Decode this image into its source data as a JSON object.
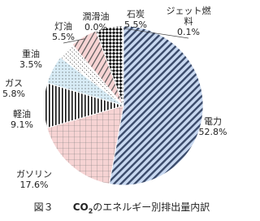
{
  "chart_data": {
    "type": "pie",
    "title_parts": [
      "図３",
      "CO",
      "2",
      "のエネルギー別排出量内訳"
    ],
    "categories": [
      "電力",
      "ガソリン",
      "軽油",
      "ガス",
      "重油",
      "灯油",
      "潤滑油",
      "石炭",
      "ジェット燃料"
    ],
    "values": [
      52.8,
      17.6,
      9.1,
      5.8,
      3.5,
      5.5,
      0.0,
      5.5,
      0.1
    ],
    "value_labels": [
      "52.8%",
      "17.6%",
      "9.1%",
      "5.8%",
      "3.5%",
      "5.5%",
      "0.0%",
      "5.5%",
      "0.1%"
    ],
    "colors": [
      "#c8d8f0",
      "#f6d3d3",
      "#ffffff",
      "#d8ecf6",
      "#ffffff",
      "#f6d3d3",
      "#ffffff",
      "#ffffff",
      "#ffffff"
    ]
  }
}
